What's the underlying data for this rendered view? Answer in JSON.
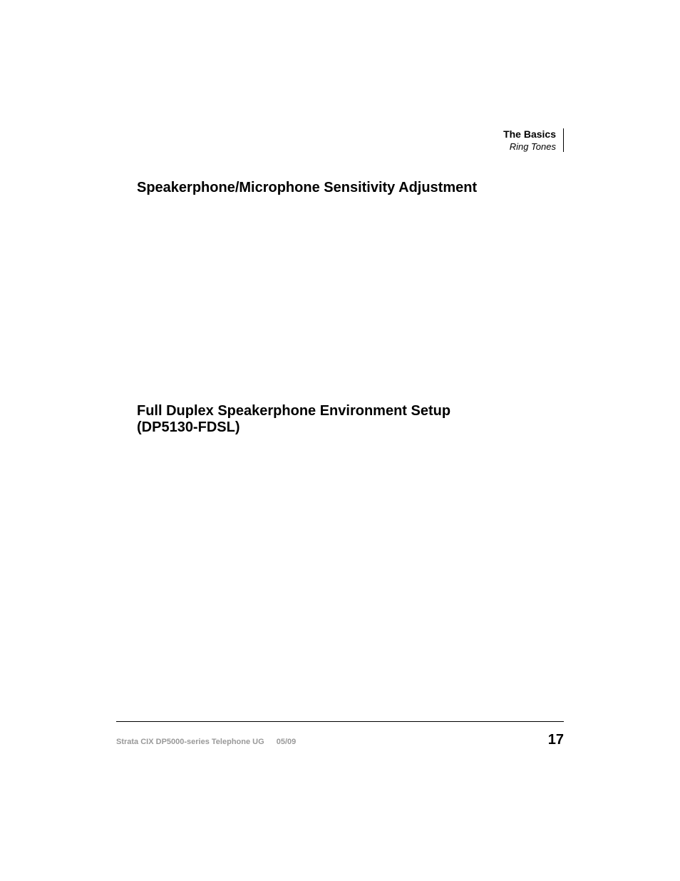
{
  "header": {
    "title": "The Basics",
    "subtitle": "Ring Tones"
  },
  "headings": {
    "h1": "Speakerphone/Microphone Sensitivity Adjustment",
    "h2_line1": "Full Duplex Speakerphone Environment Setup",
    "h2_line2": "(DP5130-FDSL)"
  },
  "footer": {
    "doc": "Strata CIX DP5000-series Telephone UG",
    "date": "05/09",
    "page": "17"
  }
}
